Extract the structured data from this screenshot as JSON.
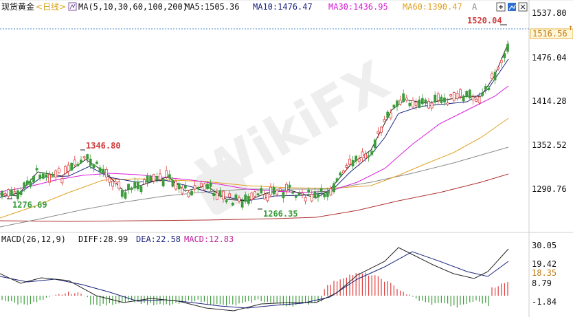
{
  "header": {
    "instrument": "现货黄金",
    "period": "<日线>",
    "ma_params": "MA(5,10,30,60,100,200)",
    "ma5": "MA5:1505.36",
    "ma10": "MA10:1476.47",
    "ma30": "MA30:1436.95",
    "ma60": "MA60:1390.47",
    "ma_letter": "A"
  },
  "macd_header": {
    "params": "MACD(26,12,9)",
    "diff": "DIFF:28.99",
    "dea": "DEA:22.58",
    "macd": "MACD:12.83"
  },
  "watermark": "WikiFX",
  "colors": {
    "up": "#e03c3c",
    "down": "#3a9c3a",
    "ma5": "#222222",
    "ma10": "#1a237e",
    "ma30": "#d81bd8",
    "ma60": "#e0a020",
    "ma100": "#8a8a8a",
    "ma200": "#b03030",
    "diff": "#222222",
    "dea": "#1a237e",
    "macd_label": "#c0209a",
    "current_line": "#4a8ad8"
  },
  "chart_data": {
    "type": "candlestick",
    "y_axis_ticks": [
      "1537.80",
      "1476.04",
      "1414.28",
      "1352.52",
      "1290.76"
    ],
    "ylim": [
      1243,
      1553
    ],
    "current_price": "1516.56",
    "annotations": {
      "high": "1520.04",
      "mid_high": "1346.80",
      "low_left": "1276.69",
      "low_mid": "1266.35"
    },
    "ma_series": [
      "MA5",
      "MA10",
      "MA30",
      "MA60",
      "MA100",
      "MA200"
    ],
    "macd_ticks": [
      "30.05",
      "19.42",
      "18.35",
      "8.79",
      "-1.84"
    ],
    "macd_ylim": [
      -5,
      33
    ]
  }
}
